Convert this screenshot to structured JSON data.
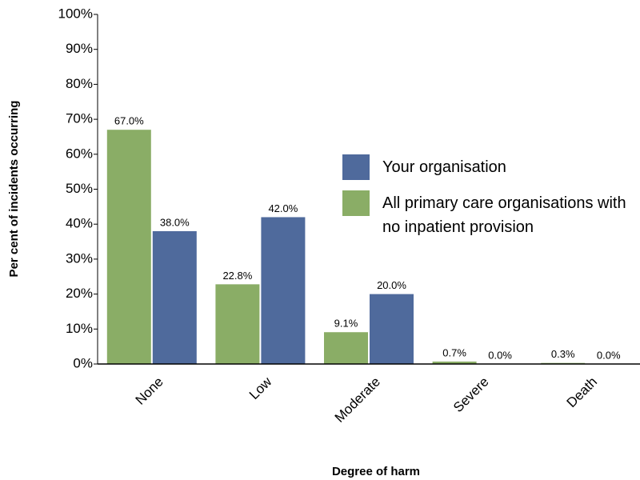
{
  "chart_data": {
    "type": "bar",
    "x_label": "Degree of harm",
    "y_label": "Per cent of incidents occurring",
    "categories": [
      "None",
      "Low",
      "Moderate",
      "Severe",
      "Death"
    ],
    "series": [
      {
        "name": "Your organisation",
        "color": "#4f6a9c",
        "values": [
          38.0,
          42.0,
          20.0,
          0.0,
          0.0
        ],
        "value_labels": [
          "38.0%",
          "42.0%",
          "20.0%",
          "0.0%",
          "0.0%"
        ]
      },
      {
        "name": "All primary care organisations with no inpatient provision",
        "color": "#8aad66",
        "values": [
          67.0,
          22.8,
          9.1,
          0.7,
          0.3
        ],
        "value_labels": [
          "67.0%",
          "22.8%",
          "9.1%",
          "0.7%",
          "0.3%"
        ]
      }
    ],
    "ylim": [
      0,
      100
    ],
    "yticks": [
      {
        "value": 0,
        "label": "0%"
      },
      {
        "value": 10,
        "label": "10%"
      },
      {
        "value": 20,
        "label": "20%"
      },
      {
        "value": 30,
        "label": "30%"
      },
      {
        "value": 40,
        "label": "40%"
      },
      {
        "value": 50,
        "label": "50%"
      },
      {
        "value": 60,
        "label": "60%"
      },
      {
        "value": 70,
        "label": "70%"
      },
      {
        "value": 80,
        "label": "80%"
      },
      {
        "value": 90,
        "label": "90%"
      },
      {
        "value": 100,
        "label": "100%"
      }
    ],
    "grid": false,
    "legend": "right"
  }
}
